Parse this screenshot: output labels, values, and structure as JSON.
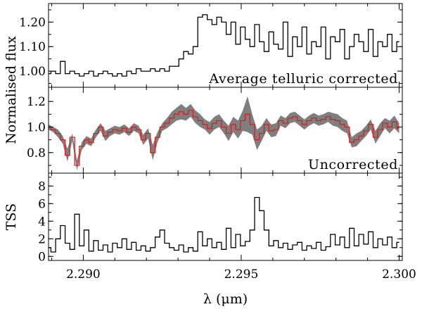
{
  "chart_data": [
    {
      "type": "line",
      "step": true,
      "label": "Average telluric corrected",
      "ylabel": "",
      "xlim": [
        2.2889,
        2.3001
      ],
      "ylim": [
        0.94,
        1.27
      ],
      "yticks": [
        1.0,
        1.1,
        1.2
      ],
      "yticklabels": [
        "1.00",
        "1.10",
        "1.20"
      ],
      "series": [
        {
          "color": "#000000",
          "x": [
            2.2889,
            2.28905,
            2.2892,
            2.28935,
            2.2895,
            2.28965,
            2.2898,
            2.28995,
            2.2901,
            2.29025,
            2.2904,
            2.29055,
            2.2907,
            2.29085,
            2.291,
            2.29115,
            2.2913,
            2.29145,
            2.2916,
            2.29175,
            2.2919,
            2.29205,
            2.2922,
            2.29235,
            2.2925,
            2.29265,
            2.2928,
            2.29295,
            2.2931,
            2.29325,
            2.2934,
            2.29355,
            2.2937,
            2.29385,
            2.294,
            2.29415,
            2.2943,
            2.29445,
            2.2946,
            2.29475,
            2.2949,
            2.29505,
            2.2952,
            2.29535,
            2.2955,
            2.29565,
            2.2958,
            2.29595,
            2.2961,
            2.29625,
            2.2964,
            2.29655,
            2.2967,
            2.29685,
            2.297,
            2.29715,
            2.2973,
            2.29745,
            2.2976,
            2.29775,
            2.2979,
            2.29805,
            2.2982,
            2.29835,
            2.2985,
            2.29865,
            2.2988,
            2.29895,
            2.2991,
            2.29925,
            2.2994,
            2.29955,
            2.2997,
            2.29985,
            2.3
          ],
          "y": [
            0.99,
            1.0,
            0.99,
            1.04,
            0.99,
            1.0,
            0.99,
            0.98,
            0.99,
            1.0,
            0.98,
            0.99,
            1.0,
            0.99,
            0.98,
            0.99,
            0.98,
            1.0,
            0.99,
            1.01,
            1.0,
            1.0,
            1.01,
            1.0,
            1.01,
            1.0,
            1.02,
            1.02,
            1.05,
            1.08,
            1.07,
            1.1,
            1.22,
            1.23,
            1.21,
            1.19,
            1.22,
            1.2,
            1.15,
            1.2,
            1.11,
            1.18,
            1.13,
            1.1,
            1.19,
            1.12,
            1.08,
            1.16,
            1.11,
            1.09,
            1.2,
            1.06,
            1.14,
            1.1,
            1.18,
            1.07,
            1.12,
            1.1,
            1.18,
            1.05,
            1.14,
            1.12,
            1.17,
            1.05,
            1.1,
            1.15,
            1.12,
            1.08,
            1.17,
            1.06,
            1.12,
            1.1,
            1.15,
            1.08,
            1.12
          ]
        }
      ]
    },
    {
      "type": "line",
      "step": true,
      "label": "Uncorrected",
      "ylabel": "",
      "xlim": [
        2.2889,
        2.3001
      ],
      "ylim": [
        0.65,
        1.3
      ],
      "yticks": [
        0.8,
        1.0,
        1.2
      ],
      "yticklabels": [
        "0.8",
        "1.0",
        "1.2"
      ],
      "series": [
        {
          "color": "#d62020",
          "band_color": "#7f7f7f",
          "x": [
            2.2889,
            2.28905,
            2.2892,
            2.28935,
            2.2895,
            2.28965,
            2.2898,
            2.28995,
            2.2901,
            2.29025,
            2.2904,
            2.29055,
            2.2907,
            2.29085,
            2.291,
            2.29115,
            2.2913,
            2.29145,
            2.2916,
            2.29175,
            2.2919,
            2.29205,
            2.2922,
            2.29235,
            2.2925,
            2.29265,
            2.2928,
            2.29295,
            2.2931,
            2.29325,
            2.2934,
            2.29355,
            2.2937,
            2.29385,
            2.294,
            2.29415,
            2.2943,
            2.29445,
            2.2946,
            2.29475,
            2.2949,
            2.29505,
            2.2952,
            2.29535,
            2.2955,
            2.29565,
            2.2958,
            2.29595,
            2.2961,
            2.29625,
            2.2964,
            2.29655,
            2.2967,
            2.29685,
            2.297,
            2.29715,
            2.2973,
            2.29745,
            2.2976,
            2.29775,
            2.2979,
            2.29805,
            2.2982,
            2.29835,
            2.2985,
            2.29865,
            2.2988,
            2.29895,
            2.2991,
            2.29925,
            2.2994,
            2.29955,
            2.2997,
            2.29985,
            2.3
          ],
          "y": [
            1.0,
            0.98,
            0.95,
            0.9,
            0.78,
            0.92,
            0.7,
            0.85,
            0.9,
            0.88,
            0.95,
            1.0,
            0.93,
            0.96,
            0.98,
            0.97,
            0.99,
            0.96,
            1.0,
            0.98,
            0.9,
            0.95,
            0.8,
            0.92,
            1.0,
            1.03,
            1.07,
            1.1,
            1.12,
            1.1,
            1.13,
            1.08,
            1.05,
            1.02,
            0.99,
            1.03,
            1.05,
            1.0,
            0.95,
            1.02,
            0.98,
            1.05,
            1.1,
            1.02,
            0.9,
            0.95,
            1.02,
            0.97,
            0.98,
            1.05,
            1.03,
            1.07,
            1.08,
            1.05,
            1.02,
            1.05,
            1.07,
            1.05,
            1.06,
            1.08,
            1.06,
            1.05,
            1.02,
            1.0,
            0.88,
            0.9,
            0.93,
            0.97,
            1.02,
            0.92,
            0.98,
            1.03,
            1.0,
            1.04,
            0.99
          ],
          "err": [
            0.02,
            0.02,
            0.03,
            0.03,
            0.05,
            0.03,
            0.04,
            0.03,
            0.03,
            0.03,
            0.03,
            0.03,
            0.04,
            0.03,
            0.03,
            0.03,
            0.03,
            0.03,
            0.03,
            0.03,
            0.04,
            0.04,
            0.06,
            0.04,
            0.03,
            0.04,
            0.05,
            0.05,
            0.06,
            0.05,
            0.05,
            0.05,
            0.05,
            0.04,
            0.05,
            0.05,
            0.05,
            0.05,
            0.06,
            0.06,
            0.07,
            0.08,
            0.14,
            0.08,
            0.08,
            0.06,
            0.05,
            0.05,
            0.05,
            0.04,
            0.04,
            0.04,
            0.04,
            0.04,
            0.04,
            0.04,
            0.04,
            0.04,
            0.04,
            0.04,
            0.05,
            0.05,
            0.05,
            0.05,
            0.04,
            0.05,
            0.04,
            0.04,
            0.04,
            0.05,
            0.05,
            0.04,
            0.05,
            0.05,
            0.04
          ]
        }
      ]
    },
    {
      "type": "line",
      "step": true,
      "label": "",
      "ylabel": "TSS",
      "xlabel": "λ (μm)",
      "xlim": [
        2.2889,
        2.3001
      ],
      "ylim": [
        -0.3,
        9.3
      ],
      "yticks": [
        0,
        2,
        4,
        6,
        8
      ],
      "yticklabels": [
        "0",
        "2",
        "4",
        "6",
        "8"
      ],
      "xticks": [
        2.29,
        2.295,
        2.3
      ],
      "xticklabels": [
        "2.290",
        "2.295",
        "2.300"
      ],
      "series": [
        {
          "color": "#000000",
          "x": [
            2.2889,
            2.28905,
            2.2892,
            2.28935,
            2.2895,
            2.28965,
            2.2898,
            2.28995,
            2.2901,
            2.29025,
            2.2904,
            2.29055,
            2.2907,
            2.29085,
            2.291,
            2.29115,
            2.2913,
            2.29145,
            2.2916,
            2.29175,
            2.2919,
            2.29205,
            2.2922,
            2.29235,
            2.2925,
            2.29265,
            2.2928,
            2.29295,
            2.2931,
            2.29325,
            2.2934,
            2.29355,
            2.2937,
            2.29385,
            2.294,
            2.29415,
            2.2943,
            2.29445,
            2.2946,
            2.29475,
            2.2949,
            2.29505,
            2.2952,
            2.29535,
            2.2955,
            2.29565,
            2.2958,
            2.29595,
            2.2961,
            2.29625,
            2.2964,
            2.29655,
            2.2967,
            2.29685,
            2.297,
            2.29715,
            2.2973,
            2.29745,
            2.2976,
            2.29775,
            2.2979,
            2.29805,
            2.2982,
            2.29835,
            2.2985,
            2.29865,
            2.2988,
            2.29895,
            2.2991,
            2.29925,
            2.2994,
            2.29955,
            2.2997,
            2.29985,
            2.3
          ],
          "y": [
            1.0,
            0.5,
            2.0,
            3.5,
            1.5,
            0.8,
            4.8,
            1.2,
            3.0,
            0.6,
            1.8,
            0.7,
            1.3,
            0.5,
            1.5,
            1.0,
            2.0,
            0.8,
            1.6,
            0.7,
            1.2,
            0.6,
            1.0,
            2.2,
            3.0,
            1.5,
            1.0,
            0.7,
            1.3,
            0.5,
            1.0,
            0.6,
            2.8,
            1.2,
            2.0,
            1.0,
            1.6,
            0.8,
            3.2,
            1.0,
            2.5,
            1.2,
            1.7,
            3.0,
            6.7,
            5.2,
            3.0,
            1.2,
            1.8,
            1.0,
            1.5,
            0.8,
            1.3,
            1.6,
            0.7,
            1.2,
            0.9,
            1.6,
            0.7,
            1.1,
            2.5,
            1.3,
            2.2,
            1.0,
            3.2,
            1.2,
            2.5,
            1.4,
            2.8,
            1.0,
            2.0,
            1.3,
            2.2,
            1.0,
            1.6
          ]
        }
      ]
    }
  ],
  "figure": {
    "shared_ylabel": "Normalised flux"
  }
}
